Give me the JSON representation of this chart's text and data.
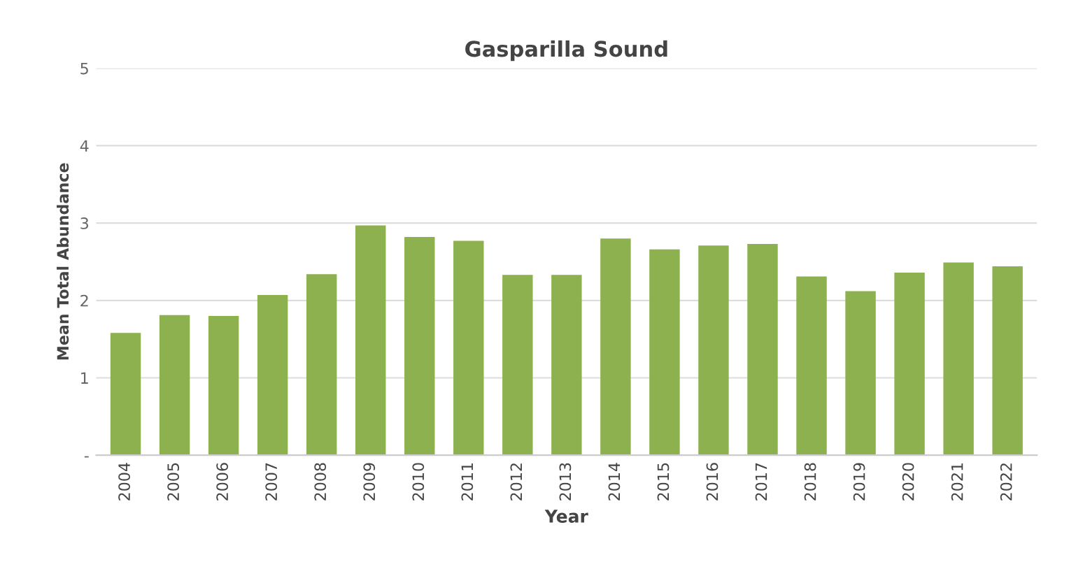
{
  "chart_data": {
    "type": "bar",
    "title": "Gasparilla Sound",
    "xlabel": "Year",
    "ylabel": "Mean Total Abundance",
    "categories": [
      "2004",
      "2005",
      "2006",
      "2007",
      "2008",
      "2009",
      "2010",
      "2011",
      "2012",
      "2013",
      "2014",
      "2015",
      "2016",
      "2017",
      "2018",
      "2019",
      "2020",
      "2021",
      "2022"
    ],
    "values": [
      1.58,
      1.81,
      1.8,
      2.07,
      2.34,
      2.97,
      2.82,
      2.77,
      2.33,
      2.33,
      2.8,
      2.66,
      2.71,
      2.73,
      2.31,
      2.12,
      2.36,
      2.49,
      2.44
    ],
    "color": "#8db14e",
    "ylim": [
      0,
      5
    ],
    "yticks": [
      {
        "value": 0,
        "label": "-"
      },
      1,
      2,
      3,
      4,
      5
    ],
    "grid": "y"
  }
}
